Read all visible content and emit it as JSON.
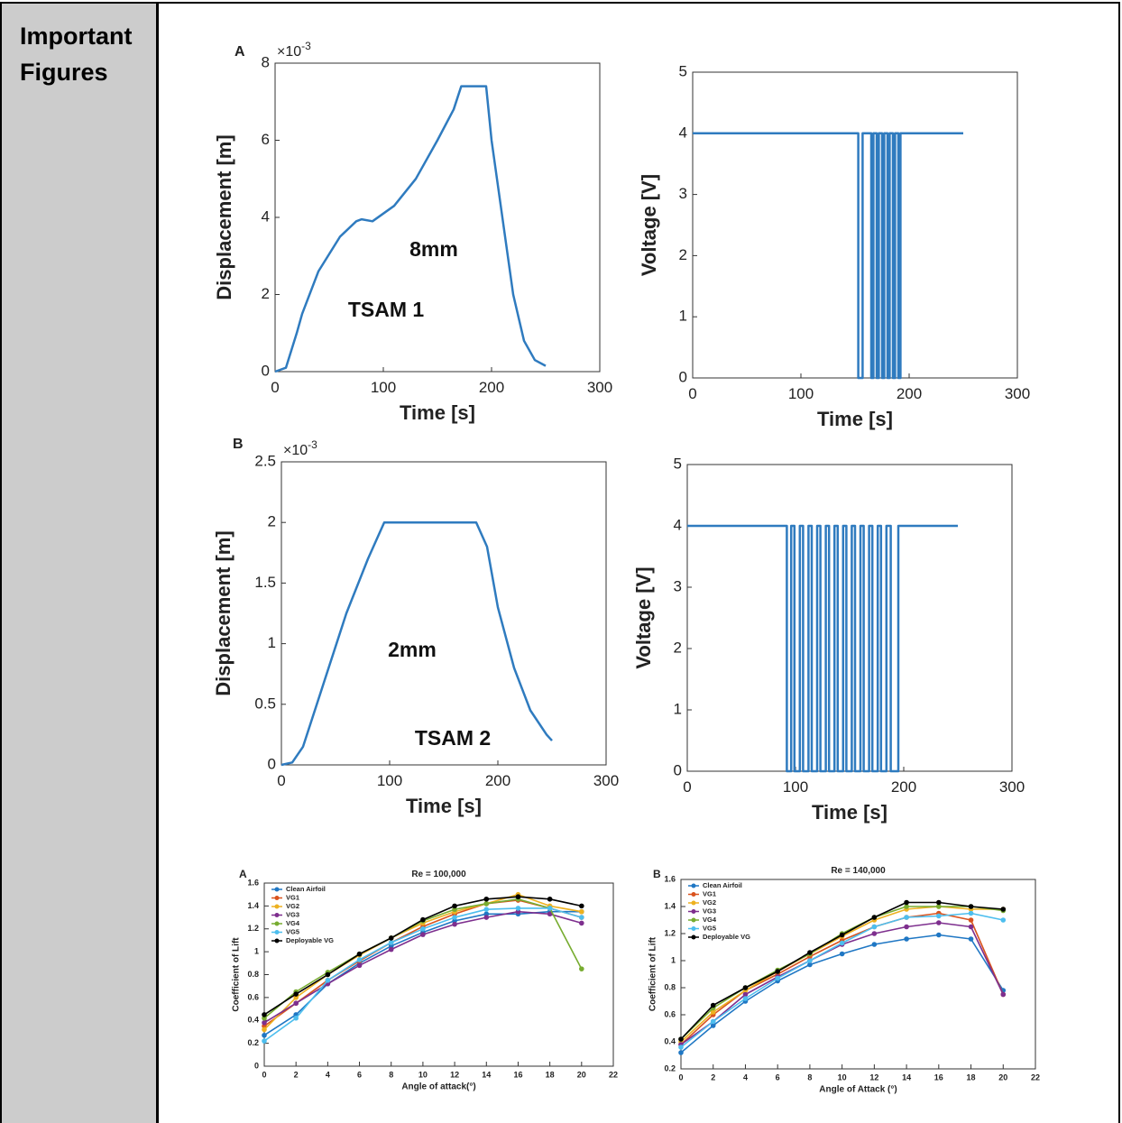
{
  "table": {
    "label": "Important Figures"
  },
  "chart_data": [
    {
      "type": "line",
      "panel": "A",
      "xlabel": "Time [s]",
      "ylabel": "Displacement [m]",
      "y_multiplier": {
        "base": "×10",
        "exponent": "-3"
      },
      "color": "#2f7bbf",
      "x": [
        0,
        10,
        20,
        25,
        40,
        60,
        75,
        80,
        90,
        110,
        130,
        150,
        165,
        172,
        195,
        200,
        210,
        220,
        230,
        240,
        250
      ],
      "values": [
        0,
        0.1,
        1,
        1.5,
        2.6,
        3.5,
        3.9,
        3.95,
        3.9,
        4.3,
        5,
        6,
        6.8,
        7.4,
        7.4,
        6,
        4,
        2,
        0.8,
        0.3,
        0.15
      ],
      "xlim": [
        0,
        300
      ],
      "xticks": [
        0,
        100,
        200,
        300
      ],
      "ylim": [
        0,
        8
      ],
      "yticks": [
        0,
        2,
        4,
        6,
        8
      ],
      "annotations": [
        "8mm",
        "TSAM 1"
      ]
    },
    {
      "type": "line",
      "xlabel": "Time [s]",
      "ylabel": "Voltage [V]",
      "color": "#2f7bbf",
      "x": [
        0,
        153,
        153,
        157,
        157,
        165,
        165,
        167,
        167,
        170,
        170,
        172,
        172,
        175,
        175,
        177,
        177,
        180,
        180,
        182,
        182,
        185,
        185,
        187,
        187,
        190,
        190,
        192,
        192,
        250
      ],
      "values": [
        4,
        4,
        0,
        0,
        4,
        4,
        0,
        0,
        4,
        4,
        0,
        0,
        4,
        4,
        0,
        0,
        4,
        4,
        0,
        0,
        4,
        4,
        0,
        0,
        4,
        4,
        0,
        0,
        4,
        4
      ],
      "xlim": [
        0,
        300
      ],
      "xticks": [
        0,
        100,
        200,
        300
      ],
      "ylim": [
        0,
        5
      ],
      "yticks": [
        0,
        1,
        2,
        3,
        4,
        5
      ]
    },
    {
      "type": "line",
      "panel": "B",
      "xlabel": "Time [s]",
      "ylabel": "Displacement [m]",
      "y_multiplier": {
        "base": "×10",
        "exponent": "-3"
      },
      "color": "#2f7bbf",
      "x": [
        0,
        10,
        20,
        40,
        60,
        80,
        90,
        95,
        180,
        190,
        200,
        215,
        230,
        245,
        250
      ],
      "values": [
        0,
        0.02,
        0.15,
        0.7,
        1.25,
        1.7,
        1.9,
        2.0,
        2.0,
        1.8,
        1.3,
        0.8,
        0.45,
        0.25,
        0.2
      ],
      "xlim": [
        0,
        300
      ],
      "xticks": [
        0,
        100,
        200,
        300
      ],
      "ylim": [
        0,
        2.5
      ],
      "yticks": [
        0,
        0.5,
        1,
        1.5,
        2,
        2.5
      ],
      "annotations": [
        "2mm",
        "TSAM 2"
      ]
    },
    {
      "type": "line",
      "xlabel": "Time [s]",
      "ylabel": "Voltage [V]",
      "color": "#2f7bbf",
      "x": [
        0,
        92,
        92,
        96,
        96,
        99,
        99,
        104,
        104,
        107,
        107,
        112,
        112,
        115,
        115,
        120,
        120,
        123,
        123,
        128,
        128,
        131,
        131,
        136,
        136,
        139,
        139,
        144,
        144,
        147,
        147,
        152,
        152,
        155,
        155,
        160,
        160,
        163,
        163,
        168,
        168,
        171,
        171,
        176,
        176,
        179,
        179,
        184,
        184,
        188,
        188,
        195,
        195,
        250
      ],
      "values": [
        4,
        4,
        0,
        0,
        4,
        4,
        0,
        0,
        4,
        4,
        0,
        0,
        4,
        4,
        0,
        0,
        4,
        4,
        0,
        0,
        4,
        4,
        0,
        0,
        4,
        4,
        0,
        0,
        4,
        4,
        0,
        0,
        4,
        4,
        0,
        0,
        4,
        4,
        0,
        0,
        4,
        4,
        0,
        0,
        4,
        4,
        0,
        0,
        4,
        4,
        0,
        0,
        4,
        4
      ],
      "xlim": [
        0,
        300
      ],
      "xticks": [
        0,
        100,
        200,
        300
      ],
      "ylim": [
        0,
        5
      ],
      "yticks": [
        0,
        1,
        2,
        3,
        4,
        5
      ]
    },
    {
      "type": "line",
      "panel": "A",
      "title": "Re = 100,000",
      "xlabel": "Angle of attack(°)",
      "ylabel": "Coefficient of Lift",
      "legend": "upper left",
      "markers": true,
      "x": [
        0,
        2,
        4,
        6,
        8,
        10,
        12,
        14,
        16,
        18,
        20
      ],
      "series": [
        {
          "name": "Clean Airfoil",
          "color": "#1f77c4",
          "values": [
            0.27,
            0.45,
            0.72,
            0.9,
            1.05,
            1.17,
            1.27,
            1.33,
            1.33,
            1.35,
            1.35
          ]
        },
        {
          "name": "VG1",
          "color": "#d9531e",
          "values": [
            0.35,
            0.55,
            0.75,
            0.92,
            1.08,
            1.22,
            1.33,
            1.42,
            1.45,
            1.38,
            1.3
          ]
        },
        {
          "name": "VG2",
          "color": "#edb120",
          "values": [
            0.32,
            0.6,
            0.8,
            0.97,
            1.12,
            1.25,
            1.35,
            1.42,
            1.5,
            1.4,
            1.35
          ]
        },
        {
          "name": "VG3",
          "color": "#7e2f8e",
          "values": [
            0.38,
            0.55,
            0.72,
            0.88,
            1.02,
            1.15,
            1.24,
            1.3,
            1.35,
            1.33,
            1.25
          ]
        },
        {
          "name": "VG4",
          "color": "#77ac30",
          "values": [
            0.42,
            0.65,
            0.82,
            0.98,
            1.12,
            1.27,
            1.37,
            1.42,
            1.46,
            1.38,
            0.85
          ]
        },
        {
          "name": "VG5",
          "color": "#4dbeee",
          "values": [
            0.22,
            0.42,
            0.75,
            0.93,
            1.08,
            1.2,
            1.3,
            1.37,
            1.38,
            1.38,
            1.3
          ]
        },
        {
          "name": "Deployable VG",
          "color": "#000000",
          "values": [
            0.45,
            0.63,
            0.8,
            0.98,
            1.12,
            1.28,
            1.4,
            1.46,
            1.48,
            1.46,
            1.4
          ]
        }
      ],
      "xlim": [
        0,
        22
      ],
      "xticks": [
        0,
        2,
        4,
        6,
        8,
        10,
        12,
        14,
        16,
        18,
        20,
        22
      ],
      "ylim": [
        0,
        1.6
      ],
      "yticks": [
        0,
        0.2,
        0.4,
        0.6,
        0.8,
        1,
        1.2,
        1.4,
        1.6
      ]
    },
    {
      "type": "line",
      "panel": "B",
      "title": "Re = 140,000",
      "xlabel": "Angle of Attack (°)",
      "ylabel": "Coefficient of Lift",
      "legend": "upper left",
      "markers": true,
      "x": [
        0,
        2,
        4,
        6,
        8,
        10,
        12,
        14,
        16,
        18,
        20
      ],
      "series": [
        {
          "name": "Clean Airfoil",
          "color": "#1f77c4",
          "values": [
            0.32,
            0.52,
            0.7,
            0.85,
            0.97,
            1.05,
            1.12,
            1.16,
            1.19,
            1.16,
            0.78
          ]
        },
        {
          "name": "VG1",
          "color": "#d9531e",
          "values": [
            0.38,
            0.6,
            0.78,
            0.9,
            1.03,
            1.15,
            1.25,
            1.32,
            1.35,
            1.3,
            0.75
          ]
        },
        {
          "name": "VG2",
          "color": "#edb120",
          "values": [
            0.4,
            0.62,
            0.78,
            0.92,
            1.05,
            1.18,
            1.3,
            1.38,
            1.4,
            1.38,
            1.38
          ]
        },
        {
          "name": "VG3",
          "color": "#7e2f8e",
          "values": [
            0.38,
            0.55,
            0.75,
            0.88,
            1.0,
            1.12,
            1.2,
            1.25,
            1.28,
            1.25,
            0.75
          ]
        },
        {
          "name": "VG4",
          "color": "#77ac30",
          "values": [
            0.42,
            0.65,
            0.8,
            0.93,
            1.05,
            1.2,
            1.32,
            1.4,
            1.4,
            1.4,
            1.37
          ]
        },
        {
          "name": "VG5",
          "color": "#4dbeee",
          "values": [
            0.36,
            0.55,
            0.72,
            0.87,
            1.0,
            1.13,
            1.25,
            1.32,
            1.33,
            1.35,
            1.3
          ]
        },
        {
          "name": "Deployable VG",
          "color": "#000000",
          "values": [
            0.42,
            0.67,
            0.8,
            0.92,
            1.06,
            1.19,
            1.32,
            1.43,
            1.43,
            1.4,
            1.38
          ]
        }
      ],
      "xlim": [
        0,
        22
      ],
      "xticks": [
        0,
        2,
        4,
        6,
        8,
        10,
        12,
        14,
        16,
        18,
        20,
        22
      ],
      "ylim": [
        0.2,
        1.6
      ],
      "yticks": [
        0.2,
        0.4,
        0.6,
        0.8,
        1,
        1.2,
        1.4,
        1.6
      ]
    }
  ]
}
